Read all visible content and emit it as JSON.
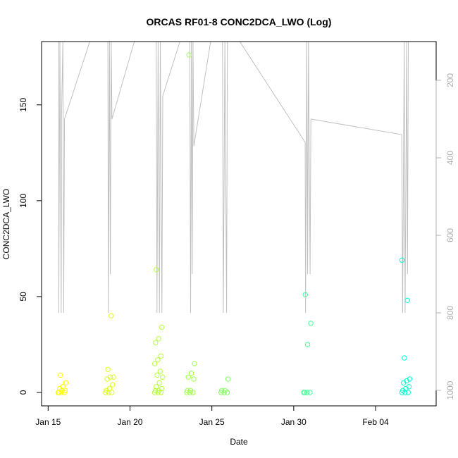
{
  "chart_data": {
    "type": "scatter",
    "title": "ORCAS RF01-8 CONC2DCA_LWO (Log)",
    "xlabel": "Date",
    "ylabel": "CONC2DCA_LWO",
    "x_ticks": [
      {
        "date": "2016-01-15",
        "label": "Jan 15"
      },
      {
        "date": "2016-01-20",
        "label": "Jan 20"
      },
      {
        "date": "2016-01-25",
        "label": "Jan 25"
      },
      {
        "date": "2016-01-30",
        "label": "Jan 30"
      },
      {
        "date": "2016-02-04",
        "label": "Feb 04"
      }
    ],
    "xlim": [
      "2016-01-14.6",
      "2016-02-07.7"
    ],
    "ylim": [
      -7,
      183
    ],
    "y_ticks": [
      0,
      50,
      100,
      150
    ],
    "right_axis": {
      "label": "",
      "ticks": [
        200,
        400,
        600,
        800,
        1000
      ],
      "ylim": [
        1040,
        100
      ],
      "color": "#b0b0b0"
    },
    "grid": false,
    "legend": "none",
    "point_color_start": "#ffff00",
    "point_color_end": "#00ffd0",
    "line_color": "#c0c0c0",
    "flights": [
      {
        "center": "2016-01-15.85",
        "points": [
          0,
          0,
          0,
          0,
          1,
          1,
          2,
          3,
          5,
          9
        ]
      },
      {
        "center": "2016-01-18.75",
        "points": [
          0,
          0,
          0,
          1,
          2,
          4,
          7,
          8,
          8,
          12,
          40
        ]
      },
      {
        "center": "2016-01-21.75",
        "points": [
          0,
          0,
          0,
          1,
          1,
          2,
          3,
          5,
          8,
          9,
          11,
          15,
          17,
          19,
          26,
          28,
          34,
          64
        ]
      },
      {
        "center": "2016-01-23.7",
        "points": [
          0,
          0,
          0,
          1,
          1,
          7,
          8,
          10,
          15,
          176
        ]
      },
      {
        "center": "2016-01-25.8",
        "points": [
          0,
          0,
          0,
          1,
          1,
          7
        ]
      },
      {
        "center": "2016-01-30.85",
        "points": [
          0,
          0,
          0,
          0,
          25,
          36,
          51
        ]
      },
      {
        "center": "2016-02-05.85",
        "points": [
          0,
          0,
          0,
          1,
          2,
          3,
          5,
          6,
          7,
          18,
          48,
          69
        ]
      }
    ],
    "altitude_track": [
      {
        "date": "2016-01-15.65",
        "alt": 100
      },
      {
        "date": "2016-01-15.65",
        "alt": 800
      },
      {
        "date": "2016-01-15.72",
        "alt": 100
      },
      {
        "date": "2016-01-15.8",
        "alt": 800
      },
      {
        "date": "2016-01-15.82",
        "alt": 300
      },
      {
        "date": "2016-01-15.9",
        "alt": 100
      },
      {
        "date": "2016-01-15.95",
        "alt": 800
      },
      {
        "date": "2016-01-16.0",
        "alt": 300
      },
      {
        "date": "2016-01-17.7",
        "alt": 80
      },
      {
        "date": "2016-01-18.65",
        "alt": 100
      },
      {
        "date": "2016-01-18.68",
        "alt": 800
      },
      {
        "date": "2016-01-18.75",
        "alt": 100
      },
      {
        "date": "2016-01-18.8",
        "alt": 700
      },
      {
        "date": "2016-01-18.85",
        "alt": 100
      },
      {
        "date": "2016-01-18.9",
        "alt": 300
      },
      {
        "date": "2016-01-20.4",
        "alt": 80
      },
      {
        "date": "2016-01-21.6",
        "alt": 100
      },
      {
        "date": "2016-01-21.65",
        "alt": 800
      },
      {
        "date": "2016-01-21.72",
        "alt": 100
      },
      {
        "date": "2016-01-21.8",
        "alt": 800
      },
      {
        "date": "2016-01-21.85",
        "alt": 100
      },
      {
        "date": "2016-01-21.95",
        "alt": 800
      },
      {
        "date": "2016-01-22.0",
        "alt": 240
      },
      {
        "date": "2016-01-23.2",
        "alt": 80
      },
      {
        "date": "2016-01-23.65",
        "alt": 100
      },
      {
        "date": "2016-01-23.7",
        "alt": 800
      },
      {
        "date": "2016-01-23.75",
        "alt": 100
      },
      {
        "date": "2016-01-23.8",
        "alt": 700
      },
      {
        "date": "2016-01-23.85",
        "alt": 100
      },
      {
        "date": "2016-01-23.9",
        "alt": 370
      },
      {
        "date": "2016-01-25.0",
        "alt": 80
      },
      {
        "date": "2016-01-25.65",
        "alt": 100
      },
      {
        "date": "2016-01-25.7",
        "alt": 800
      },
      {
        "date": "2016-01-25.8",
        "alt": 100
      },
      {
        "date": "2016-01-25.9",
        "alt": 800
      },
      {
        "date": "2016-01-25.95",
        "alt": 100
      },
      {
        "date": "2016-01-26.4",
        "alt": 80
      },
      {
        "date": "2016-01-30.7",
        "alt": 360
      },
      {
        "date": "2016-01-30.72",
        "alt": 800
      },
      {
        "date": "2016-01-30.8",
        "alt": 100
      },
      {
        "date": "2016-01-30.85",
        "alt": 700
      },
      {
        "date": "2016-01-30.9",
        "alt": 100
      },
      {
        "date": "2016-01-31.0",
        "alt": 700
      },
      {
        "date": "2016-01-31.05",
        "alt": 300
      },
      {
        "date": "2016-02-05.6",
        "alt": 340
      },
      {
        "date": "2016-02-05.65",
        "alt": 800
      },
      {
        "date": "2016-02-05.75",
        "alt": 100
      },
      {
        "date": "2016-02-05.8",
        "alt": 800
      },
      {
        "date": "2016-02-05.9",
        "alt": 100
      },
      {
        "date": "2016-02-05.95",
        "alt": 700
      },
      {
        "date": "2016-02-06.0",
        "alt": 100
      }
    ]
  }
}
